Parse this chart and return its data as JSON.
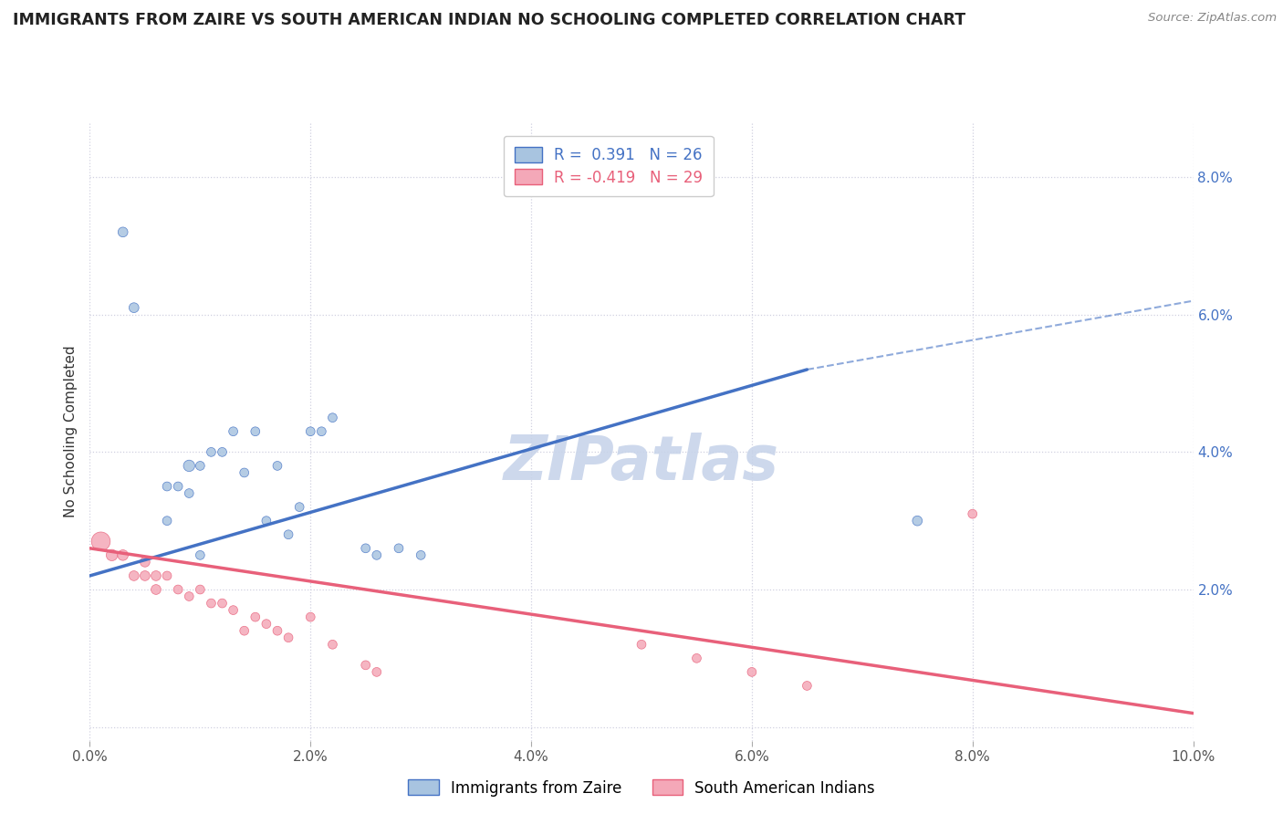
{
  "title": "IMMIGRANTS FROM ZAIRE VS SOUTH AMERICAN INDIAN NO SCHOOLING COMPLETED CORRELATION CHART",
  "source": "Source: ZipAtlas.com",
  "ylabel": "No Schooling Completed",
  "xlim": [
    0.0,
    0.1
  ],
  "ylim": [
    -0.002,
    0.088
  ],
  "legend_r1": "R =  0.391   N = 26",
  "legend_r2": "R = -0.419   N = 29",
  "legend_labels": [
    "Immigrants from Zaire",
    "South American Indians"
  ],
  "blue_color": "#A8C4E0",
  "pink_color": "#F4A8B8",
  "blue_line_color": "#4472C4",
  "pink_line_color": "#E8607A",
  "grid_color": "#D0D0E0",
  "background_color": "#FFFFFF",
  "title_color": "#222222",
  "watermark_color": "#C8D4EA",
  "blue_scatter": [
    [
      0.003,
      0.072
    ],
    [
      0.004,
      0.061
    ],
    [
      0.007,
      0.035
    ],
    [
      0.007,
      0.03
    ],
    [
      0.008,
      0.035
    ],
    [
      0.009,
      0.038
    ],
    [
      0.009,
      0.034
    ],
    [
      0.01,
      0.025
    ],
    [
      0.01,
      0.038
    ],
    [
      0.011,
      0.04
    ],
    [
      0.012,
      0.04
    ],
    [
      0.013,
      0.043
    ],
    [
      0.014,
      0.037
    ],
    [
      0.015,
      0.043
    ],
    [
      0.016,
      0.03
    ],
    [
      0.017,
      0.038
    ],
    [
      0.018,
      0.028
    ],
    [
      0.019,
      0.032
    ],
    [
      0.02,
      0.043
    ],
    [
      0.021,
      0.043
    ],
    [
      0.022,
      0.045
    ],
    [
      0.025,
      0.026
    ],
    [
      0.026,
      0.025
    ],
    [
      0.028,
      0.026
    ],
    [
      0.03,
      0.025
    ],
    [
      0.075,
      0.03
    ]
  ],
  "pink_scatter": [
    [
      0.001,
      0.027
    ],
    [
      0.002,
      0.025
    ],
    [
      0.003,
      0.025
    ],
    [
      0.004,
      0.022
    ],
    [
      0.005,
      0.024
    ],
    [
      0.005,
      0.022
    ],
    [
      0.006,
      0.02
    ],
    [
      0.006,
      0.022
    ],
    [
      0.007,
      0.022
    ],
    [
      0.008,
      0.02
    ],
    [
      0.009,
      0.019
    ],
    [
      0.01,
      0.02
    ],
    [
      0.011,
      0.018
    ],
    [
      0.012,
      0.018
    ],
    [
      0.013,
      0.017
    ],
    [
      0.014,
      0.014
    ],
    [
      0.015,
      0.016
    ],
    [
      0.016,
      0.015
    ],
    [
      0.017,
      0.014
    ],
    [
      0.018,
      0.013
    ],
    [
      0.02,
      0.016
    ],
    [
      0.022,
      0.012
    ],
    [
      0.025,
      0.009
    ],
    [
      0.026,
      0.008
    ],
    [
      0.05,
      0.012
    ],
    [
      0.055,
      0.01
    ],
    [
      0.06,
      0.008
    ],
    [
      0.065,
      0.006
    ],
    [
      0.08,
      0.031
    ]
  ],
  "blue_scatter_sizes": [
    60,
    60,
    50,
    50,
    50,
    80,
    50,
    50,
    50,
    50,
    50,
    50,
    50,
    50,
    50,
    50,
    50,
    50,
    50,
    50,
    50,
    50,
    50,
    50,
    50,
    60
  ],
  "pink_scatter_sizes": [
    220,
    80,
    70,
    60,
    60,
    60,
    60,
    60,
    50,
    50,
    50,
    50,
    50,
    50,
    50,
    50,
    50,
    50,
    50,
    50,
    50,
    50,
    50,
    50,
    50,
    50,
    50,
    50,
    50
  ],
  "blue_line_solid": [
    [
      0.0,
      0.022
    ],
    [
      0.065,
      0.052
    ]
  ],
  "blue_line_dashed": [
    [
      0.065,
      0.052
    ],
    [
      0.1,
      0.062
    ]
  ],
  "pink_line": [
    [
      0.0,
      0.026
    ],
    [
      0.1,
      0.002
    ]
  ]
}
